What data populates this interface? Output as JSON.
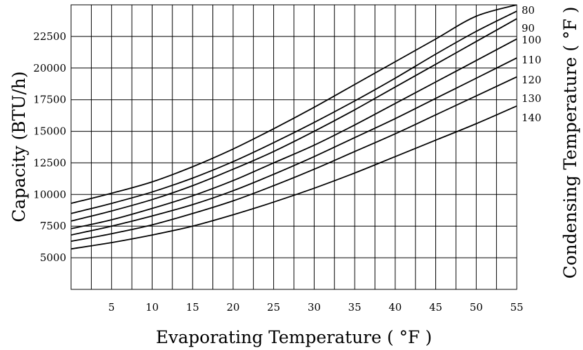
{
  "chart_data": {
    "type": "line",
    "title": "",
    "xlabel": "Evaporating Temperature ( °F )",
    "ylabel": "Capacity (BTU/h)",
    "y2label": "Condensing Temperature ( °F )",
    "xlim": [
      0,
      55
    ],
    "ylim": [
      2500,
      25000
    ],
    "x_ticks": [
      "5",
      "10",
      "15",
      "20",
      "25",
      "30",
      "35",
      "40",
      "45",
      "50",
      "55"
    ],
    "y_ticks": [
      "5000",
      "7500",
      "10000",
      "12500",
      "15000",
      "17500",
      "20000",
      "22500"
    ],
    "grid": true,
    "x": [
      0,
      5,
      10,
      15,
      20,
      25,
      30,
      35,
      40,
      45,
      50,
      55
    ],
    "series": [
      {
        "name": "80",
        "values": [
          9300,
          10100,
          11000,
          12200,
          13600,
          15200,
          16900,
          18700,
          20500,
          22300,
          24100,
          25000
        ]
      },
      {
        "name": "90",
        "values": [
          8500,
          9300,
          10200,
          11300,
          12600,
          14100,
          15700,
          17400,
          19200,
          21100,
          22900,
          24500
        ]
      },
      {
        "name": "100",
        "values": [
          7900,
          8700,
          9600,
          10700,
          12000,
          13400,
          15000,
          16700,
          18500,
          20300,
          22100,
          23900
        ]
      },
      {
        "name": "110",
        "values": [
          7300,
          8000,
          8900,
          9900,
          11100,
          12500,
          13900,
          15500,
          17200,
          18900,
          20600,
          22300
        ]
      },
      {
        "name": "120",
        "values": [
          6800,
          7500,
          8300,
          9200,
          10300,
          11600,
          13000,
          14500,
          16000,
          17600,
          19200,
          20800
        ]
      },
      {
        "name": "130",
        "values": [
          6300,
          6900,
          7600,
          8500,
          9500,
          10700,
          12000,
          13400,
          14800,
          16300,
          17800,
          19300
        ]
      },
      {
        "name": "140",
        "values": [
          5700,
          6200,
          6800,
          7500,
          8400,
          9400,
          10500,
          11700,
          13000,
          14300,
          15600,
          17000
        ]
      }
    ]
  }
}
